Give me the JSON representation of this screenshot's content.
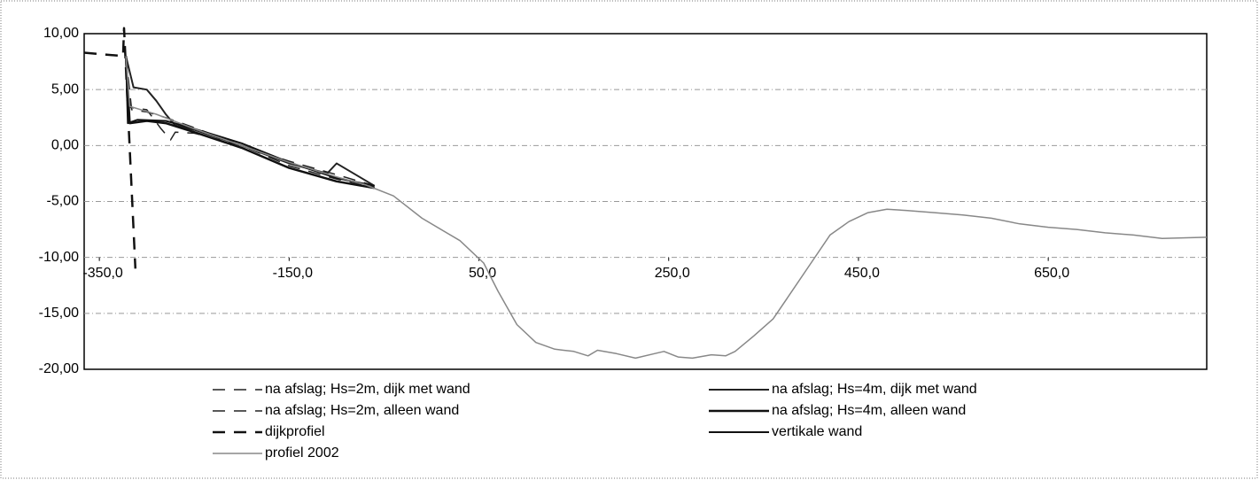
{
  "chart_data": {
    "type": "line",
    "xlim": [
      -366,
      817
    ],
    "ylim": [
      -20,
      10
    ],
    "x_axis_crossing": -10,
    "grid": true,
    "legend": "bottom",
    "xticks": [
      {
        "value": -350,
        "label": "-350,0"
      },
      {
        "value": -150,
        "label": "-150,0"
      },
      {
        "value": 50,
        "label": "50,0"
      },
      {
        "value": 250,
        "label": "250,0"
      },
      {
        "value": 450,
        "label": "450,0"
      },
      {
        "value": 650,
        "label": "650,0"
      }
    ],
    "yticks": [
      {
        "value": -20,
        "label": "-20,00"
      },
      {
        "value": -15,
        "label": "-15,00"
      },
      {
        "value": -10,
        "label": "-10,00"
      },
      {
        "value": -5,
        "label": "-5,00"
      },
      {
        "value": 0,
        "label": "0,00"
      },
      {
        "value": 5,
        "label": "5,00"
      },
      {
        "value": 10,
        "label": "10,00"
      }
    ],
    "series": [
      {
        "name": "na afslag; Hs=2m, dijk met wand",
        "color": "#222222",
        "dash": true,
        "width": 1.5,
        "x": [
          -322,
          -316,
          -300,
          -280,
          -250,
          -200,
          -150,
          -100,
          -60
        ],
        "values": [
          8.0,
          3.2,
          3.0,
          2.5,
          1.6,
          0.0,
          -1.4,
          -2.6,
          -3.6
        ]
      },
      {
        "name": "na afslag; Hs=4m, dijk met wand",
        "color": "#222222",
        "dash": false,
        "width": 2,
        "x": [
          -322,
          -314,
          -300,
          -290,
          -280,
          -270,
          -250,
          -200,
          -150,
          -110,
          -100,
          -60
        ],
        "values": [
          8.0,
          5.2,
          5.0,
          4.0,
          2.8,
          1.8,
          1.4,
          0.0,
          -1.6,
          -2.5,
          -1.6,
          -3.6
        ]
      },
      {
        "name": "na afslag; Hs=2m, alleen wand",
        "color": "#222222",
        "dash": true,
        "width": 1.5,
        "x": [
          -322,
          -317,
          -300,
          -285,
          -275,
          -270,
          -250,
          -200,
          -150,
          -100,
          -60
        ],
        "values": [
          8.0,
          3.4,
          3.2,
          1.5,
          0.5,
          1.2,
          1.1,
          0.0,
          -1.8,
          -3.0,
          -3.7
        ]
      },
      {
        "name": "na afslag; Hs=4m, alleen wand",
        "color": "#111111",
        "dash": false,
        "width": 2.5,
        "x": [
          -322,
          -318,
          -300,
          -280,
          -250,
          -200,
          -150,
          -100,
          -60
        ],
        "values": [
          8.0,
          2.0,
          2.2,
          2.0,
          1.2,
          -0.2,
          -2.0,
          -3.2,
          -3.8
        ]
      },
      {
        "name": "dijkprofiel",
        "color": "#111111",
        "dash": true,
        "width": 2.5,
        "x": [
          -366,
          -325,
          -324,
          -312
        ],
        "values": [
          8.3,
          8.0,
          10.5,
          -11.0
        ]
      },
      {
        "name": "vertikale wand",
        "color": "#111111",
        "dash": false,
        "width": 2,
        "x": [
          -322,
          -320,
          -310,
          -280,
          -250,
          -200,
          -150,
          -100,
          -60
        ],
        "values": [
          8.0,
          2.0,
          2.3,
          2.2,
          1.5,
          0.2,
          -1.5,
          -2.9,
          -3.6
        ]
      },
      {
        "name": "profiel 2002",
        "color": "#888888",
        "dash": false,
        "width": 1.5,
        "x": [
          -322,
          -318,
          -290,
          -250,
          -200,
          -150,
          -100,
          -70,
          -40,
          -10,
          30,
          55,
          70,
          90,
          110,
          130,
          150,
          165,
          175,
          195,
          215,
          235,
          245,
          260,
          275,
          295,
          310,
          320,
          340,
          360,
          380,
          400,
          420,
          440,
          460,
          480,
          500,
          530,
          560,
          590,
          620,
          650,
          680,
          710,
          740,
          770,
          817
        ],
        "values": [
          8.0,
          3.5,
          2.8,
          1.5,
          0.0,
          -1.5,
          -2.8,
          -3.5,
          -4.5,
          -6.5,
          -8.5,
          -10.5,
          -13.0,
          -16.0,
          -17.6,
          -18.2,
          -18.4,
          -18.8,
          -18.3,
          -18.6,
          -19.0,
          -18.6,
          -18.4,
          -18.9,
          -19.0,
          -18.7,
          -18.8,
          -18.4,
          -17.0,
          -15.5,
          -13.0,
          -10.5,
          -8.0,
          -6.8,
          -6.0,
          -5.7,
          -5.8,
          -6.0,
          -6.2,
          -6.5,
          -7.0,
          -7.3,
          -7.5,
          -7.8,
          -8.0,
          -8.3,
          -8.2
        ]
      }
    ]
  }
}
